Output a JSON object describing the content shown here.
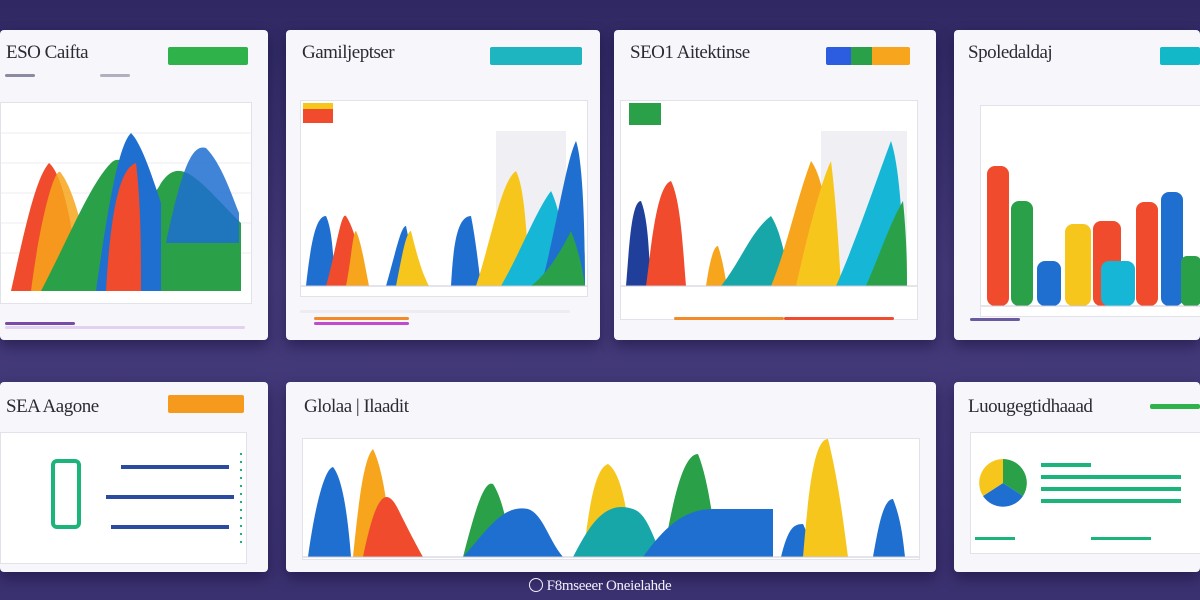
{
  "panels": {
    "p1": {
      "title": "ESO Caifta",
      "accent": "#2fb24a"
    },
    "p2": {
      "title": "Gamiljeptser",
      "accent": "#1eb5c0"
    },
    "p3": {
      "title": "SEO1 Aitektinse",
      "accent": "#2c5de0"
    },
    "p4": {
      "title": "Spoledaldaj",
      "accent": "#13b8c8"
    },
    "p5": {
      "title": "SEA Aagone",
      "accent": "#f59a1d"
    },
    "p6": {
      "title": "Glolaa | Ilaadit"
    },
    "p7": {
      "title": "Luougegtidhaaad",
      "accent": "#2fb24a"
    }
  },
  "caption": "F8mseeer Oneielahde",
  "colors": {
    "blue": "#1f6fd1",
    "red": "#ef4b2c",
    "orange": "#f7a51c",
    "yellow": "#f7c61c",
    "green": "#2aa048",
    "cyan": "#16b7d6",
    "teal": "#18a7a9"
  }
}
